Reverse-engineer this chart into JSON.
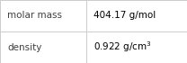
{
  "rows": [
    {
      "label": "molar mass",
      "value": "404.17 g/mol",
      "has_superscript": false
    },
    {
      "label": "density",
      "value": "0.922 g/cm",
      "has_superscript": true,
      "superscript": "3"
    }
  ],
  "background_color": "#ffffff",
  "border_color": "#cccccc",
  "label_color": "#404040",
  "value_color": "#000000",
  "label_fontsize": 7.5,
  "value_fontsize": 7.5,
  "col_split": 0.46,
  "fig_width": 2.08,
  "fig_height": 0.7,
  "dpi": 100
}
